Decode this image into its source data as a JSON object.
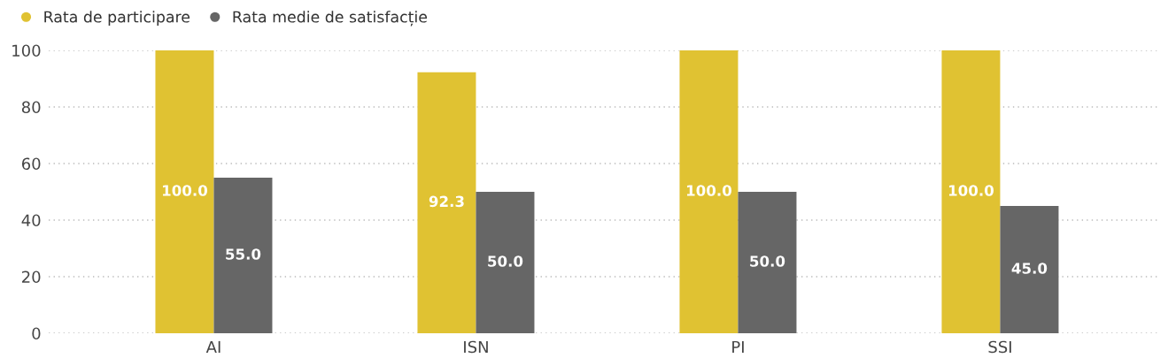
{
  "chart_data": {
    "type": "bar",
    "categories": [
      "AI",
      "ISN",
      "PI",
      "SSI"
    ],
    "series": [
      {
        "name": "Rata de participare",
        "color": "#e0c232",
        "values": [
          100,
          92.3,
          100,
          100
        ],
        "value_labels": [
          "100.0",
          "92.3",
          "100.0",
          "100.0"
        ]
      },
      {
        "name": "Rata medie de satisfacție",
        "color": "#666666",
        "values": [
          55,
          50,
          50,
          45
        ],
        "value_labels": [
          "55.0",
          "50.0",
          "50.0",
          "45.0"
        ]
      }
    ],
    "ylim": [
      0,
      100
    ],
    "yticks": [
      0,
      20,
      40,
      60,
      80,
      100
    ],
    "grid": "y",
    "legend": "top left"
  }
}
